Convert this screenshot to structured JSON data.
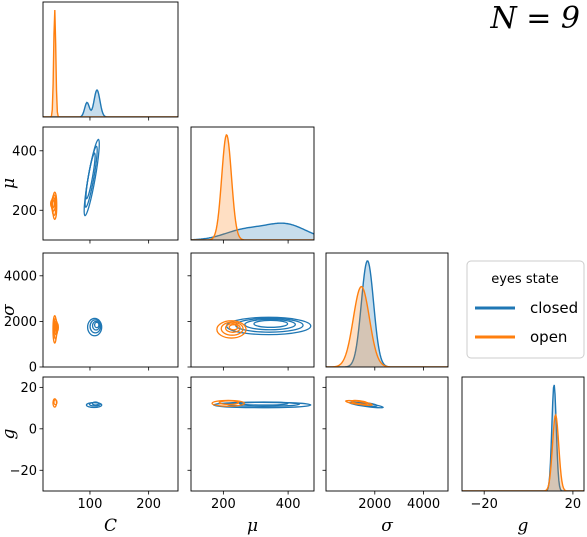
{
  "figure": {
    "title": "N = 9",
    "title_lhs": "N",
    "title_rhs": "= 9"
  },
  "legend": {
    "title": "eyes state",
    "items": [
      {
        "label": "closed",
        "color": "#1f77b4"
      },
      {
        "label": "open",
        "color": "#ff7f0e"
      }
    ]
  },
  "chart_data": {
    "type": "pairplot",
    "variables": [
      "C",
      "μ",
      "σ",
      "g"
    ],
    "axis_labels": {
      "C": "C",
      "mu": "μ",
      "sigma": "σ",
      "g": "g"
    },
    "series": [
      {
        "name": "closed",
        "color": "#1f77b4"
      },
      {
        "name": "open",
        "color": "#ff7f0e"
      }
    ],
    "ranges": {
      "C": [
        20,
        250
      ],
      "mu": [
        100,
        480
      ],
      "sigma": [
        0,
        5000
      ],
      "g": [
        -30,
        25
      ]
    },
    "ticks": {
      "C": [
        100,
        200
      ],
      "mu": [
        200,
        400
      ],
      "mu_row": [
        200,
        400
      ],
      "sigma": [
        2000,
        4000
      ],
      "sigma_row": [
        0,
        2000,
        4000
      ],
      "g": [
        -20,
        20
      ],
      "g_row": [
        -20,
        0,
        20
      ]
    },
    "tick_labels": {
      "C": [
        "100",
        "200"
      ],
      "mu": [
        "200",
        "400"
      ],
      "mu_row": [
        "200",
        "400"
      ],
      "sigma": [
        "2000",
        "4000"
      ],
      "sigma_row": [
        "0",
        "2000",
        "4000"
      ],
      "g": [
        "−20",
        "20"
      ],
      "g_row": [
        "−20",
        "0",
        "20"
      ]
    },
    "marginals": {
      "C": {
        "closed": {
          "peaks": [
            {
              "x": 112,
              "sd": 5,
              "w": 0.7
            },
            {
              "x": 95,
              "sd": 4,
              "w": 0.3
            }
          ]
        },
        "open": {
          "peaks": [
            {
              "x": 40,
              "sd": 1.8,
              "w": 1.0
            }
          ]
        }
      },
      "mu": {
        "closed": {
          "peaks": [
            {
              "x": 390,
              "sd": 65,
              "w": 0.65
            },
            {
              "x": 260,
              "sd": 60,
              "w": 0.35
            }
          ]
        },
        "open": {
          "peaks": [
            {
              "x": 210,
              "sd": 15,
              "w": 1.0
            }
          ]
        }
      },
      "sigma": {
        "closed": {
          "peaks": [
            {
              "x": 1700,
              "sd": 250,
              "w": 1.0
            }
          ]
        },
        "open": {
          "peaks": [
            {
              "x": 1450,
              "sd": 330,
              "w": 1.0
            }
          ]
        }
      },
      "g": {
        "closed": {
          "peaks": [
            {
              "x": 11.5,
              "sd": 1.0,
              "w": 1.0
            }
          ]
        },
        "open": {
          "peaks": [
            {
              "x": 12.2,
              "sd": 1.4,
              "w": 1.0
            }
          ]
        }
      }
    },
    "clusters": {
      "mu_vs_C": {
        "closed": {
          "cx": 103,
          "cy": 310,
          "sx": 10,
          "sy": 85,
          "angle_deg": 80,
          "levels": [
            1.0,
            0.8,
            0.6
          ]
        },
        "open": {
          "cx": 40,
          "cy": 215,
          "sx": 3,
          "sy": 35,
          "angle_deg": 90,
          "levels": [
            1.0,
            0.75,
            0.5,
            0.3
          ]
        }
      },
      "sigma_vs_C": {
        "closed": {
          "cx": 108,
          "cy": 1750,
          "sx": 12,
          "sy": 380,
          "angle_deg": 0,
          "levels": [
            1.0,
            0.75,
            0.5,
            0.3
          ]
        },
        "open": {
          "cx": 40,
          "cy": 1650,
          "sx": 3,
          "sy": 600,
          "angle_deg": 0,
          "levels": [
            1.0,
            0.75,
            0.5,
            0.3
          ]
        }
      },
      "sigma_vs_mu": {
        "closed": {
          "cx": 340,
          "cy": 1800,
          "sx": 130,
          "sy": 380,
          "angle_deg": 0,
          "levels": [
            1.0,
            0.8,
            0.6,
            0.4
          ]
        },
        "open": {
          "cx": 225,
          "cy": 1650,
          "sx": 45,
          "sy": 380,
          "angle_deg": 0,
          "levels": [
            1.0,
            0.75,
            0.5,
            0.3
          ]
        }
      },
      "g_vs_C": {
        "closed": {
          "cx": 107,
          "cy": 11.5,
          "sx": 13,
          "sy": 1.2,
          "angle_deg": 0,
          "levels": [
            1.0,
            0.7,
            0.4
          ]
        },
        "open": {
          "cx": 40,
          "cy": 12.5,
          "sx": 3,
          "sy": 2.0,
          "angle_deg": 0,
          "levels": [
            1.0,
            0.6
          ]
        }
      },
      "g_vs_mu": {
        "closed": {
          "cx": 320,
          "cy": 11.5,
          "sx": 150,
          "sy": 1.3,
          "angle_deg": 0,
          "levels": [
            1.0,
            0.75,
            0.5
          ]
        },
        "open": {
          "cx": 215,
          "cy": 12.3,
          "sx": 50,
          "sy": 1.4,
          "angle_deg": 0,
          "levels": [
            1.0,
            0.6
          ]
        }
      },
      "g_vs_sigma": {
        "closed": {
          "cx": 1650,
          "cy": 11.5,
          "sx": 700,
          "sy": 0.6,
          "angle_deg": -8,
          "levels": [
            1.0,
            0.6
          ]
        },
        "open": {
          "cx": 1350,
          "cy": 12.5,
          "sx": 550,
          "sy": 0.6,
          "angle_deg": -8,
          "levels": [
            1.0,
            0.6
          ]
        }
      }
    },
    "legend_position": "right"
  }
}
